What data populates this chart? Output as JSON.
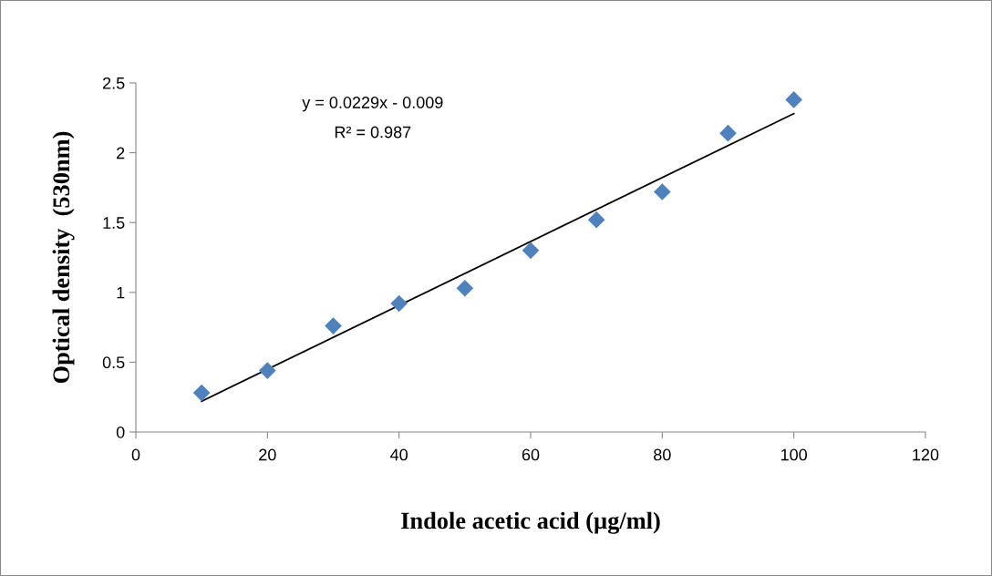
{
  "chart_data": {
    "type": "scatter",
    "xlabel": "Indole acetic acid (µg/ml)",
    "ylabel": "Optical density  (530nm)",
    "x": [
      10,
      20,
      30,
      40,
      50,
      60,
      70,
      80,
      90,
      100
    ],
    "series": [
      {
        "color": "#4f81bd",
        "marker": "diamond",
        "values": [
          0.28,
          0.44,
          0.76,
          0.92,
          1.03,
          1.3,
          1.52,
          1.72,
          2.14,
          2.38
        ]
      },
      {
        "type": "line",
        "color": "#000000",
        "marker": "none",
        "line_style": "solid",
        "x": [
          10,
          100
        ],
        "values": [
          0.22,
          2.28
        ]
      }
    ],
    "annotations": [
      "y = 0.0229x - 0.009",
      "R² = 0.987"
    ],
    "xlim": [
      0,
      120
    ],
    "xticks": [
      0,
      20,
      40,
      60,
      80,
      100,
      120
    ],
    "ylim": [
      0,
      2.5
    ],
    "yticks": [
      0,
      0.5,
      1,
      1.5,
      2,
      2.5
    ],
    "grid": false,
    "legend": false
  }
}
